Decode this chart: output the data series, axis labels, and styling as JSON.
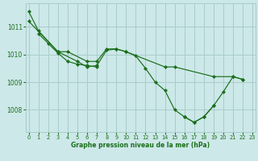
{
  "title": "Graphe pression niveau de la mer (hPa)",
  "bg_color": "#cce8e8",
  "grid_color": "#aacccc",
  "line_color": "#1a6e1a",
  "x_ticks": [
    0,
    1,
    2,
    3,
    4,
    5,
    6,
    7,
    8,
    9,
    10,
    11,
    12,
    13,
    14,
    15,
    16,
    17,
    18,
    19,
    20,
    21,
    22,
    23
  ],
  "y_ticks": [
    1008,
    1009,
    1010,
    1011
  ],
  "ylim": [
    1007.2,
    1011.85
  ],
  "xlim": [
    -0.3,
    23.3
  ],
  "series": [
    {
      "x": [
        0,
        1,
        3,
        4,
        6,
        7,
        8,
        9,
        10,
        14,
        15,
        19,
        21,
        22
      ],
      "y": [
        1011.55,
        1010.85,
        1010.1,
        1010.1,
        1009.75,
        1009.75,
        1010.2,
        1010.2,
        1010.1,
        1009.55,
        1009.55,
        1009.2,
        1009.2,
        1009.1
      ]
    },
    {
      "x": [
        1,
        2,
        3,
        4,
        5,
        6,
        7
      ],
      "y": [
        1010.75,
        1010.4,
        1010.05,
        1009.75,
        1009.65,
        1009.6,
        1009.55
      ]
    },
    {
      "x": [
        0,
        3,
        5,
        6,
        7,
        8,
        9,
        10,
        11,
        12,
        13,
        14,
        15,
        16,
        17,
        18,
        19,
        20,
        21,
        22
      ],
      "y": [
        1011.2,
        1010.1,
        1009.75,
        1009.55,
        1009.6,
        1010.15,
        1010.2,
        1010.1,
        1009.95,
        1009.5,
        1009.0,
        1008.7,
        1008.0,
        1007.75,
        1007.55,
        1007.75,
        1008.15,
        1008.65,
        1009.2,
        1009.1
      ]
    },
    {
      "x": [
        16,
        17,
        18,
        19
      ],
      "y": [
        1007.75,
        1007.55,
        1007.75,
        1008.15
      ]
    }
  ]
}
